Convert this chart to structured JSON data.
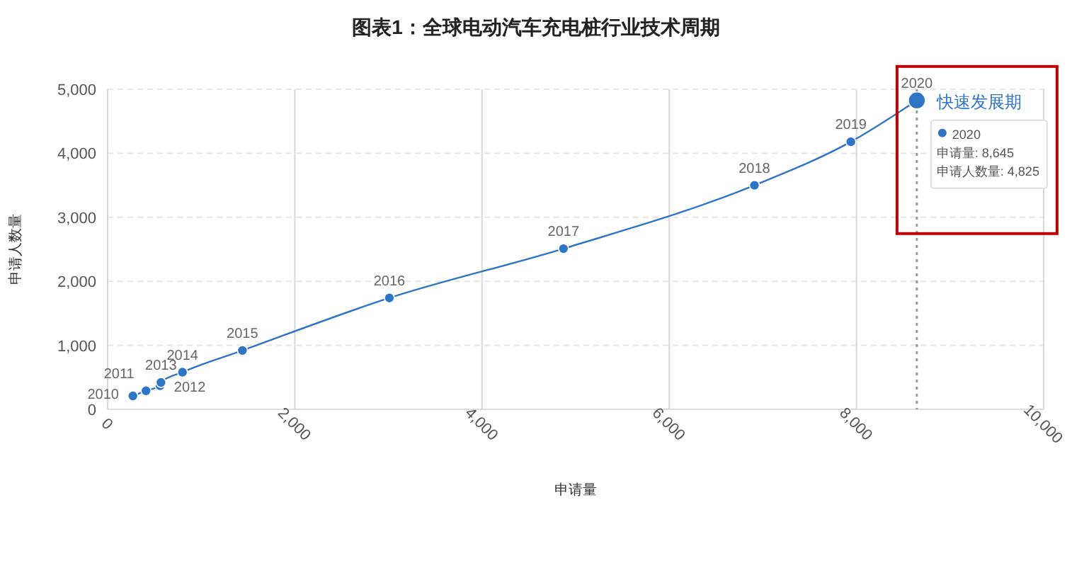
{
  "chart_data": {
    "type": "line",
    "title": "图表1：全球电动汽车充电桩行业技术周期",
    "xlabel": "申请量",
    "ylabel": "申请人数量",
    "x": [
      270,
      410,
      560,
      570,
      800,
      1440,
      3010,
      4870,
      6910,
      7940,
      8645
    ],
    "series": [
      {
        "color": "#2f75c5",
        "values": [
          210,
          290,
          370,
          420,
          580,
          920,
          1740,
          2510,
          3500,
          4180,
          4825
        ]
      }
    ],
    "marker": "circle",
    "line_style": "solid",
    "grid": true,
    "xlim": [
      0,
      10000
    ],
    "xticks": [
      0,
      {
        "value": 2000,
        "label": "2,000"
      },
      {
        "value": 4000,
        "label": "4,000"
      },
      {
        "value": 6000,
        "label": "6,000"
      },
      {
        "value": 8000,
        "label": "8,000"
      },
      {
        "value": 10000,
        "label": "10,000"
      }
    ],
    "ylim": [
      0,
      5000
    ],
    "yticks": [
      0,
      {
        "value": 1000,
        "label": "1,000"
      },
      {
        "value": 2000,
        "label": "2,000"
      },
      {
        "value": 3000,
        "label": "3,000"
      },
      {
        "value": 4000,
        "label": "4,000"
      },
      {
        "value": 5000,
        "label": "5,000"
      }
    ],
    "ref_lines": [
      {
        "axis": "x",
        "value": 8645,
        "color": "#999999",
        "line_style": "dotted"
      }
    ],
    "annotations": [
      {
        "text": "2010",
        "x": 270,
        "y": 210
      },
      {
        "text": "2011",
        "x": 410,
        "y": 290
      },
      {
        "text": "2012",
        "x": 560,
        "y": 370
      },
      {
        "text": "2013",
        "x": 570,
        "y": 420
      },
      {
        "text": "2014",
        "x": 800,
        "y": 580
      },
      {
        "text": "2015",
        "x": 1440,
        "y": 920
      },
      {
        "text": "2016",
        "x": 3010,
        "y": 1740
      },
      {
        "text": "2017",
        "x": 4870,
        "y": 2510
      },
      {
        "text": "2018",
        "x": 6910,
        "y": 3500
      },
      {
        "text": "2019",
        "x": 7940,
        "y": 4180
      },
      {
        "text": "2020",
        "x": 8645,
        "y": 4825
      },
      "快速发展期",
      "2020",
      "申请量: 8,645",
      "申请人数量: 4,825"
    ]
  }
}
